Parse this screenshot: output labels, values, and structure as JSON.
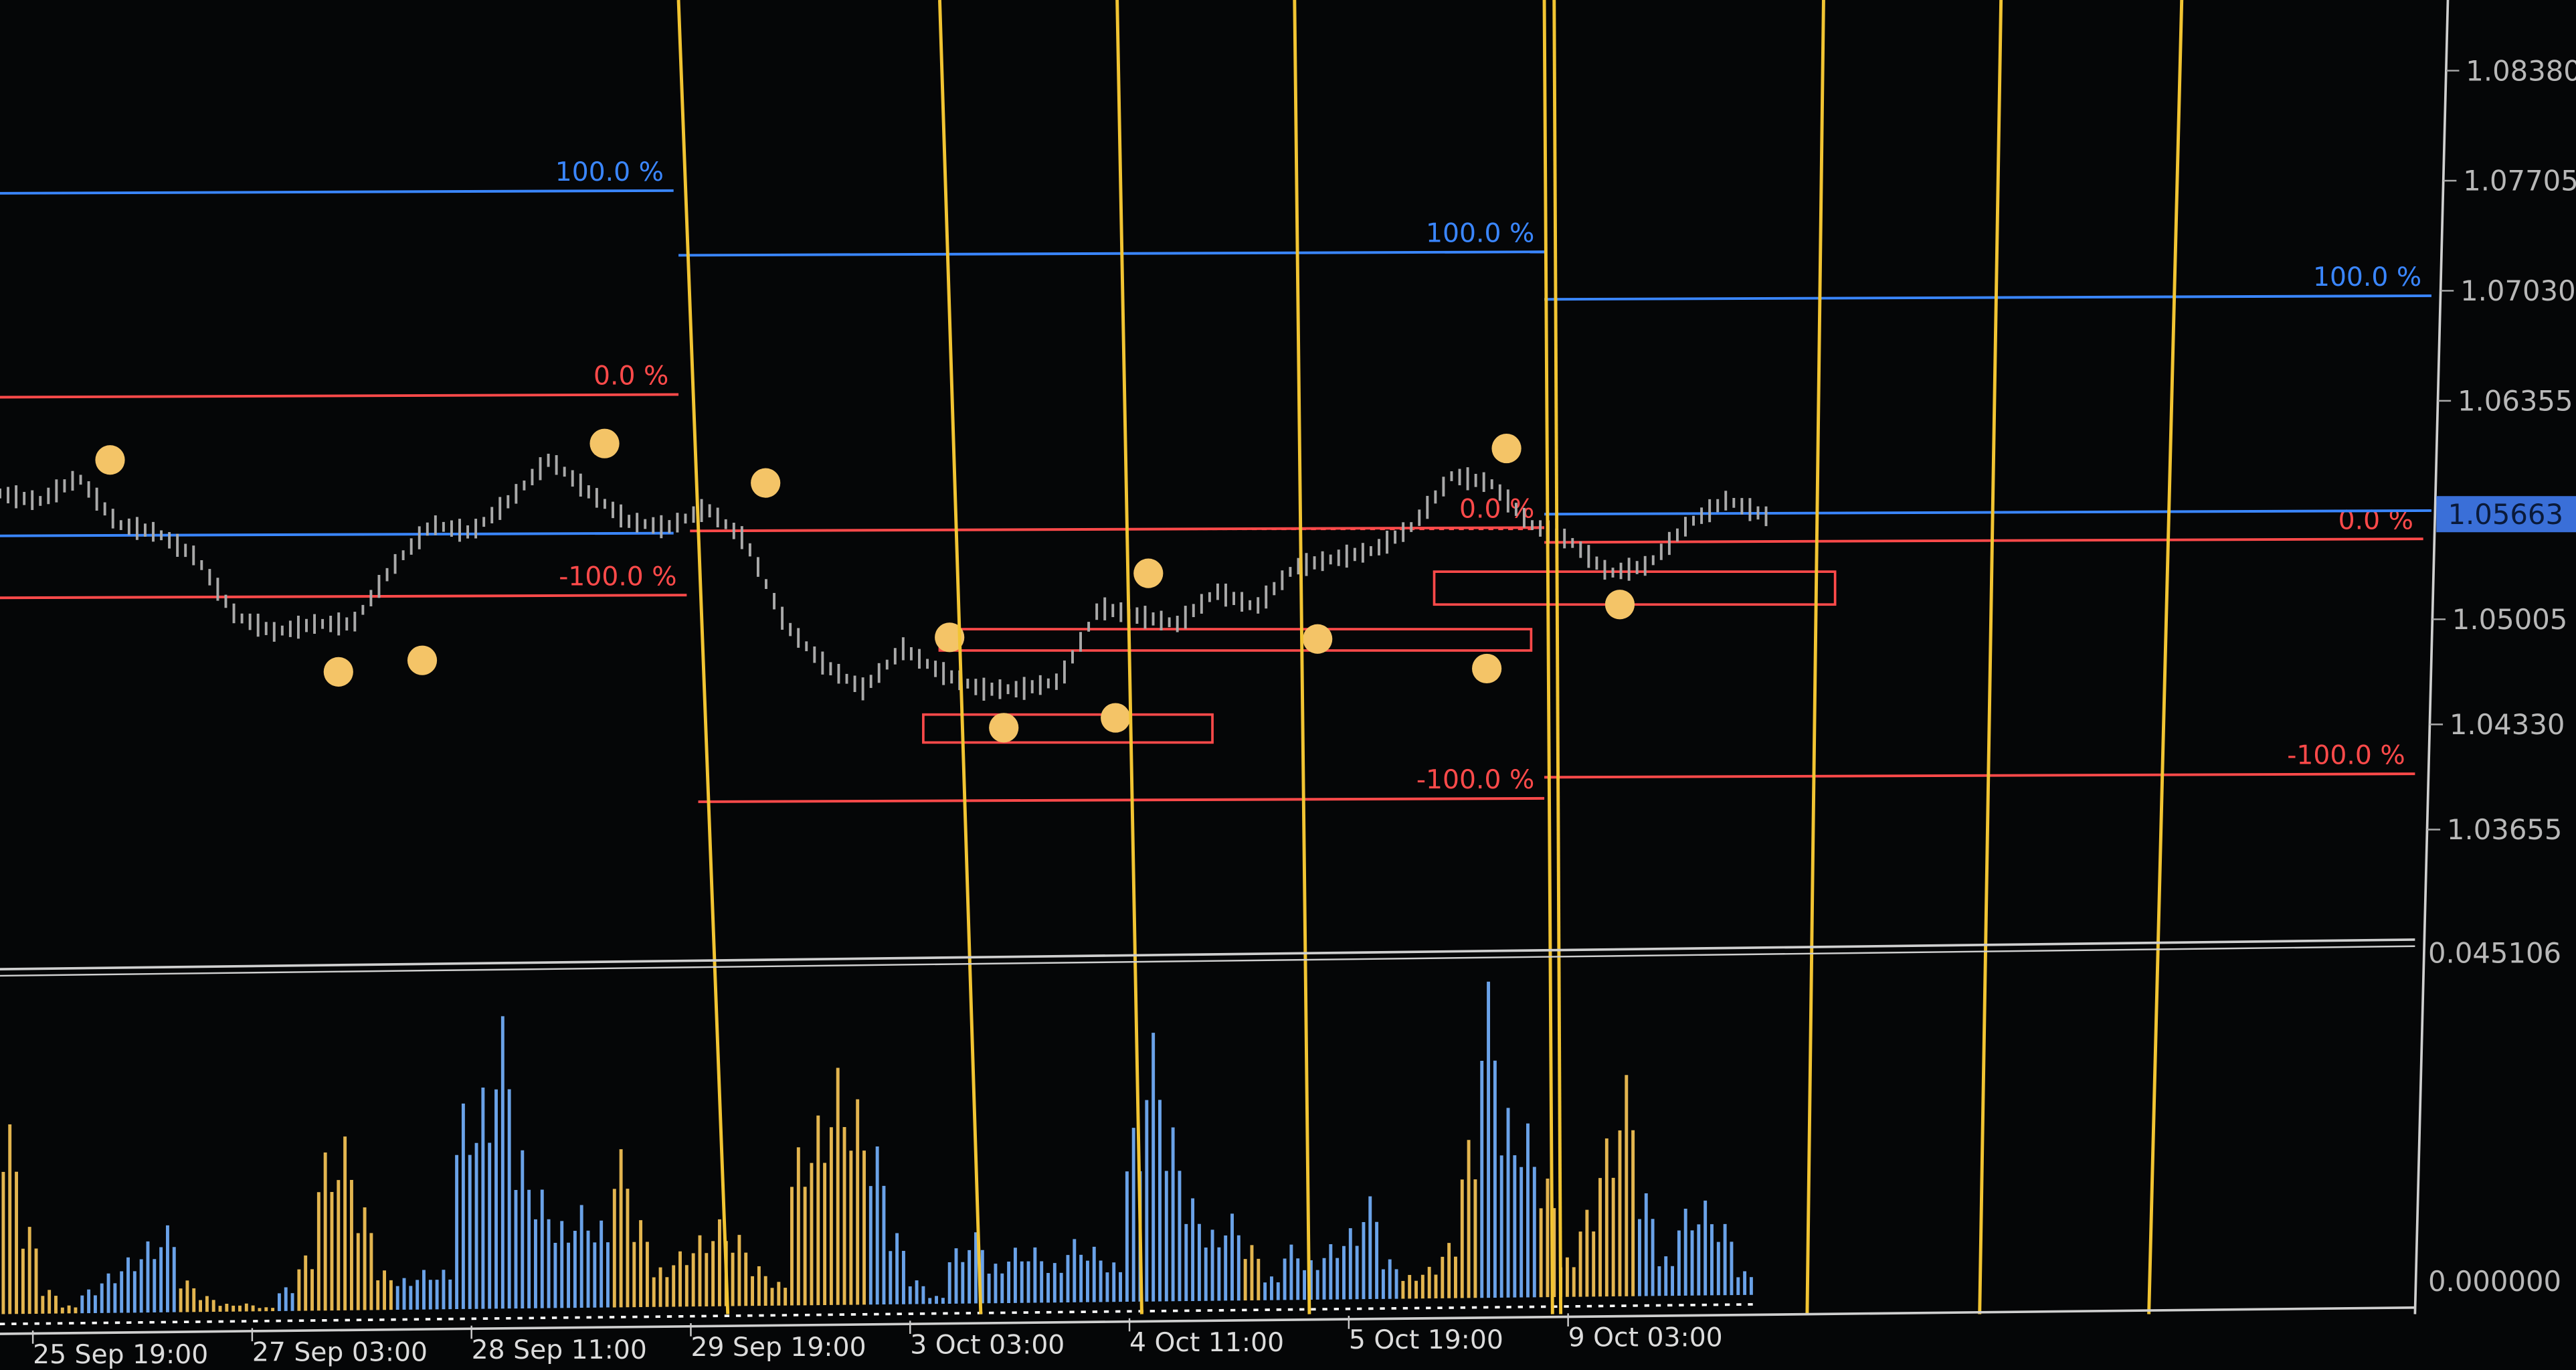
{
  "chart_data": {
    "type": "bar",
    "price_axis": {
      "ticks": [
        "1.08380",
        "1.07705",
        "1.07030",
        "1.06355",
        "1.05005",
        "1.04330",
        "1.03655"
      ],
      "current_price": "1.05663",
      "current_price_color": "#3a6fd8"
    },
    "volume_axis": {
      "ticks": [
        "0.045106",
        "0.000000"
      ],
      "ylim": [
        0,
        0.045106
      ]
    },
    "x_ticks": [
      "25 Sep 19:00",
      "27 Sep 03:00",
      "28 Sep 11:00",
      "29 Sep 19:00",
      "3 Oct 03:00",
      "4 Oct 11:00",
      "5 Oct 19:00",
      "9 Oct 03:00"
    ],
    "price_series": [
      1.0579,
      1.0574,
      1.0589,
      1.056,
      1.0555,
      1.054,
      1.0504,
      1.0494,
      1.0499,
      1.0499,
      1.0534,
      1.056,
      1.0555,
      1.0575,
      1.06,
      1.058,
      1.0562,
      1.0558,
      1.057,
      1.055,
      1.0499,
      1.0474,
      1.0459,
      1.0484,
      1.0469,
      1.0459,
      1.0459,
      1.0464,
      1.0509,
      1.0504,
      1.0499,
      1.0519,
      1.0509,
      1.0534,
      1.0539,
      1.0544,
      1.0559,
      1.059,
      1.0585,
      1.056,
      1.055,
      1.053,
      1.0535,
      1.056,
      1.0575,
      1.0565
    ],
    "volume_series": {
      "values": [
        0.024,
        0.011,
        0.003,
        0.001,
        0.003,
        0.005,
        0.007,
        0.009,
        0.011,
        0.004,
        0.002,
        0.001,
        0.001,
        0.0005,
        0.003,
        0.007,
        0.02,
        0.022,
        0.013,
        0.005,
        0.004,
        0.005,
        0.005,
        0.026,
        0.028,
        0.037,
        0.02,
        0.015,
        0.011,
        0.013,
        0.011,
        0.02,
        0.011,
        0.005,
        0.007,
        0.009,
        0.011,
        0.009,
        0.005,
        0.003,
        0.02,
        0.024,
        0.03,
        0.026,
        0.02,
        0.009,
        0.003,
        0.001,
        0.007,
        0.009,
        0.005,
        0.007,
        0.007,
        0.005,
        0.008,
        0.007,
        0.005,
        0.022,
        0.034,
        0.022,
        0.013,
        0.009,
        0.011,
        0.007,
        0.003,
        0.007,
        0.005,
        0.007,
        0.009,
        0.013,
        0.005,
        0.003,
        0.004,
        0.007,
        0.02,
        0.04,
        0.024,
        0.022,
        0.015,
        0.005,
        0.011,
        0.02,
        0.028,
        0.013,
        0.005,
        0.011,
        0.012,
        0.009,
        0.003
      ],
      "colors": "yyyybbbbbyyyyybyyyyybbbbbbbbbbbyyyyyyyyyyyyybbbbbbbbbbbbbbbbbbbybbbbbbbyyyybbbyyyyybbbbb",
      "up_color": "#e3b54f",
      "down_color": "#6aa2e8"
    },
    "levels": [
      {
        "label": "100.0 %",
        "price": 1.0763,
        "color": "#3a86ff"
      },
      {
        "label": "0.0 %",
        "price": 1.0638,
        "color": "#ff4a4a"
      },
      {
        "label": "-100.0 %",
        "price": 1.0515,
        "color": "#ff4a4a"
      },
      {
        "label": "",
        "price": 1.0553,
        "color": "#3a86ff"
      },
      {
        "label": "100.0 %",
        "price": 1.0725,
        "color": "#3a86ff"
      },
      {
        "label": "0.0 %",
        "price": 1.0556,
        "color": "#ff4a4a"
      },
      {
        "label": "-100.0 %",
        "price": 1.039,
        "color": "#ff4a4a"
      },
      {
        "label": "100.0 %",
        "price": 1.0698,
        "color": "#3a86ff"
      },
      {
        "label": "0.0 %",
        "price": 1.0549,
        "color": "#ff4a4a"
      },
      {
        "label": "",
        "price": 1.05663,
        "color": "#3a86ff"
      },
      {
        "label": "-100.0 %",
        "price": 1.0405,
        "color": "#ff4a4a"
      }
    ],
    "vertical_line_color": "#f2c432",
    "swing_point_color": "#f4c467",
    "price_bar_color": "#a9a9a9",
    "grid": false
  }
}
